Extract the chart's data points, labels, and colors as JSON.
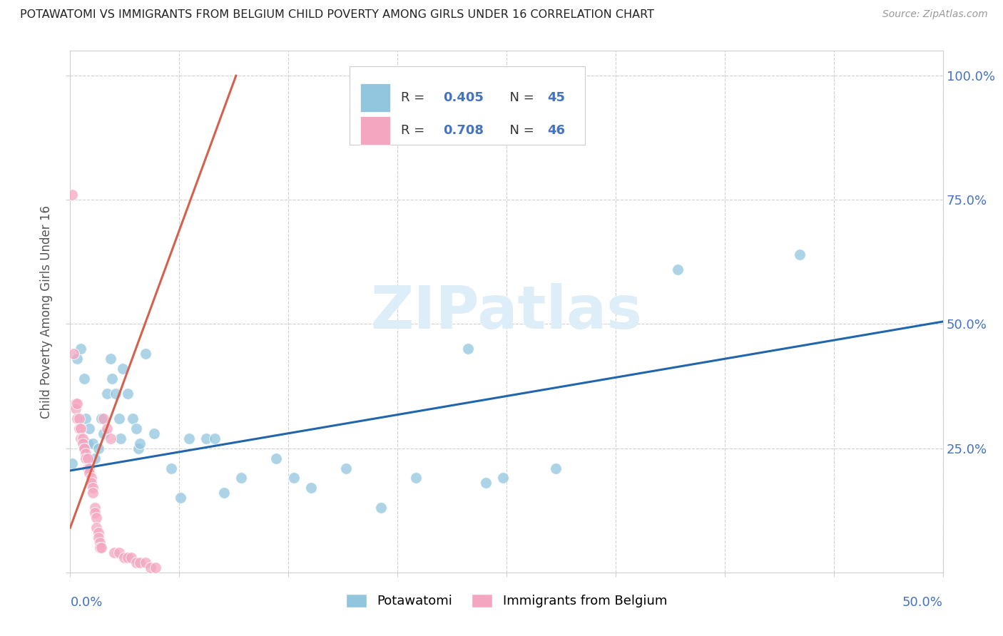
{
  "title": "POTAWATOMI VS IMMIGRANTS FROM BELGIUM CHILD POVERTY AMONG GIRLS UNDER 16 CORRELATION CHART",
  "source": "Source: ZipAtlas.com",
  "ylabel": "Child Poverty Among Girls Under 16",
  "legend_label_blue": "Potawatomi",
  "legend_label_pink": "Immigrants from Belgium",
  "blue_color": "#92c5de",
  "pink_color": "#f4a6c0",
  "blue_line_color": "#2166ac",
  "pink_line_color": "#d6604d",
  "blue_scatter": [
    [
      0.001,
      0.22
    ],
    [
      0.004,
      0.43
    ],
    [
      0.006,
      0.45
    ],
    [
      0.008,
      0.39
    ],
    [
      0.009,
      0.31
    ],
    [
      0.01,
      0.26
    ],
    [
      0.011,
      0.29
    ],
    [
      0.013,
      0.26
    ],
    [
      0.014,
      0.23
    ],
    [
      0.016,
      0.25
    ],
    [
      0.018,
      0.31
    ],
    [
      0.019,
      0.28
    ],
    [
      0.021,
      0.36
    ],
    [
      0.023,
      0.43
    ],
    [
      0.024,
      0.39
    ],
    [
      0.026,
      0.36
    ],
    [
      0.028,
      0.31
    ],
    [
      0.029,
      0.27
    ],
    [
      0.03,
      0.41
    ],
    [
      0.033,
      0.36
    ],
    [
      0.036,
      0.31
    ],
    [
      0.038,
      0.29
    ],
    [
      0.039,
      0.25
    ],
    [
      0.04,
      0.26
    ],
    [
      0.043,
      0.44
    ],
    [
      0.048,
      0.28
    ],
    [
      0.058,
      0.21
    ],
    [
      0.063,
      0.15
    ],
    [
      0.068,
      0.27
    ],
    [
      0.078,
      0.27
    ],
    [
      0.083,
      0.27
    ],
    [
      0.088,
      0.16
    ],
    [
      0.098,
      0.19
    ],
    [
      0.118,
      0.23
    ],
    [
      0.128,
      0.19
    ],
    [
      0.138,
      0.17
    ],
    [
      0.158,
      0.21
    ],
    [
      0.178,
      0.13
    ],
    [
      0.198,
      0.19
    ],
    [
      0.228,
      0.45
    ],
    [
      0.238,
      0.18
    ],
    [
      0.248,
      0.19
    ],
    [
      0.278,
      0.21
    ],
    [
      0.348,
      0.61
    ],
    [
      0.418,
      0.64
    ]
  ],
  "pink_scatter": [
    [
      0.001,
      0.76
    ],
    [
      0.002,
      0.44
    ],
    [
      0.003,
      0.34
    ],
    [
      0.003,
      0.33
    ],
    [
      0.004,
      0.34
    ],
    [
      0.004,
      0.31
    ],
    [
      0.005,
      0.31
    ],
    [
      0.005,
      0.29
    ],
    [
      0.006,
      0.29
    ],
    [
      0.006,
      0.27
    ],
    [
      0.007,
      0.27
    ],
    [
      0.007,
      0.26
    ],
    [
      0.008,
      0.25
    ],
    [
      0.008,
      0.25
    ],
    [
      0.009,
      0.24
    ],
    [
      0.009,
      0.23
    ],
    [
      0.01,
      0.23
    ],
    [
      0.01,
      0.21
    ],
    [
      0.011,
      0.21
    ],
    [
      0.011,
      0.2
    ],
    [
      0.012,
      0.19
    ],
    [
      0.012,
      0.18
    ],
    [
      0.013,
      0.17
    ],
    [
      0.013,
      0.16
    ],
    [
      0.014,
      0.13
    ],
    [
      0.014,
      0.12
    ],
    [
      0.015,
      0.11
    ],
    [
      0.015,
      0.09
    ],
    [
      0.016,
      0.08
    ],
    [
      0.016,
      0.07
    ],
    [
      0.017,
      0.06
    ],
    [
      0.017,
      0.05
    ],
    [
      0.018,
      0.05
    ],
    [
      0.019,
      0.31
    ],
    [
      0.021,
      0.29
    ],
    [
      0.023,
      0.27
    ],
    [
      0.025,
      0.04
    ],
    [
      0.028,
      0.04
    ],
    [
      0.031,
      0.03
    ],
    [
      0.033,
      0.03
    ],
    [
      0.035,
      0.03
    ],
    [
      0.038,
      0.02
    ],
    [
      0.04,
      0.02
    ],
    [
      0.043,
      0.02
    ],
    [
      0.046,
      0.01
    ],
    [
      0.049,
      0.01
    ]
  ],
  "blue_line_x": [
    0.0,
    0.5
  ],
  "blue_line_y": [
    0.205,
    0.505
  ],
  "pink_line_x": [
    0.0,
    0.095
  ],
  "pink_line_y": [
    0.09,
    1.0
  ],
  "bg_color": "#ffffff",
  "grid_color": "#d0d0d0",
  "title_color": "#222222",
  "axis_label_color": "#4472c4",
  "r_value_color": "#4472c4",
  "watermark_color": "#ddeef8",
  "xlim": [
    0.0,
    0.5
  ],
  "ylim": [
    0.0,
    1.05
  ]
}
